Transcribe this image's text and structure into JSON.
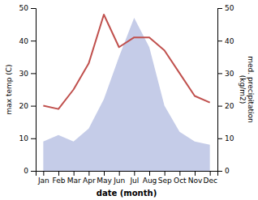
{
  "chart_data": {
    "type": "line",
    "xlabel": "date (month)",
    "ylabel": "max temp (C)",
    "y2label": "med. precipitation\n(kg/m2)",
    "categories": [
      "Jan",
      "Feb",
      "Mar",
      "Apr",
      "May",
      "Jun",
      "Jul",
      "Aug",
      "Sep",
      "Oct",
      "Nov",
      "Dec"
    ],
    "series": [
      {
        "type": "area",
        "axis": "y2",
        "color": "#c5cce8",
        "values": [
          9,
          11,
          9,
          13,
          22,
          35,
          47,
          38,
          20,
          12,
          9,
          8
        ]
      },
      {
        "type": "line",
        "color": "#c0504d",
        "values": [
          20,
          19,
          25,
          33,
          48,
          38,
          41,
          41,
          37,
          30,
          23,
          21
        ]
      }
    ],
    "ylim": [
      0,
      50
    ],
    "yticks": [
      0,
      10,
      20,
      30,
      40,
      50
    ],
    "y2lim": [
      0,
      50
    ],
    "y2ticks": [
      0,
      10,
      20,
      30,
      40,
      50
    ]
  }
}
